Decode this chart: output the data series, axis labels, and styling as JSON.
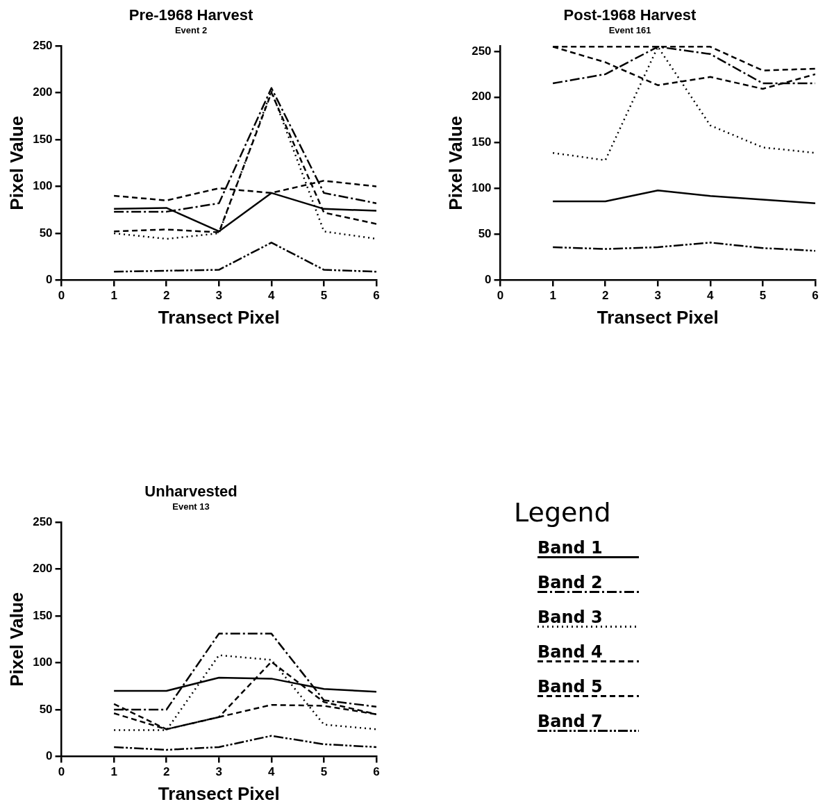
{
  "chart_data": [
    {
      "type": "line",
      "title": "Pre-1968 Harvest",
      "subtitle": "Event 2",
      "xlabel": "Transect Pixel",
      "ylabel": "Pixel Value",
      "x": [
        1,
        2,
        3,
        4,
        5,
        6
      ],
      "xlim": [
        0,
        6
      ],
      "xticks": [
        0,
        1,
        2,
        3,
        4,
        5,
        6
      ],
      "ylim": [
        0,
        250
      ],
      "yticks": [
        0,
        50,
        100,
        150,
        200,
        250
      ],
      "grid": false,
      "legend": false,
      "marker": "none",
      "series": [
        {
          "color": "#000000",
          "line_style": "solid",
          "values": [
            76,
            77,
            52,
            93,
            76,
            74
          ]
        },
        {
          "color": "#000000",
          "line_style": "dashdot",
          "values": [
            73,
            73,
            82,
            205,
            93,
            82
          ]
        },
        {
          "color": "#000000",
          "line_style": "dotted",
          "values": [
            50,
            44,
            50,
            202,
            52,
            44
          ]
        },
        {
          "color": "#000000",
          "line_style": "dashed",
          "values": [
            90,
            85,
            98,
            93,
            106,
            100
          ]
        },
        {
          "color": "#000000",
          "line_style": "dashed",
          "values": [
            52,
            54,
            51,
            200,
            72,
            60
          ]
        },
        {
          "color": "#000000",
          "line_style": "dashdotdot",
          "values": [
            9,
            10,
            11,
            40,
            11,
            9
          ]
        }
      ]
    },
    {
      "type": "line",
      "title": "Post-1968 Harvest",
      "subtitle": "Event 161",
      "xlabel": "Transect Pixel",
      "ylabel": "Pixel Value",
      "x": [
        1,
        2,
        3,
        4,
        5,
        6
      ],
      "xlim": [
        0,
        6
      ],
      "xticks": [
        0,
        1,
        2,
        3,
        4,
        5,
        6
      ],
      "ylim": [
        0,
        256
      ],
      "yticks": [
        0,
        50,
        100,
        150,
        200,
        250
      ],
      "grid": false,
      "legend": false,
      "marker": "none",
      "series": [
        {
          "color": "#000000",
          "line_style": "solid",
          "values": [
            86,
            86,
            98,
            92,
            88,
            84
          ]
        },
        {
          "color": "#000000",
          "line_style": "dashdot",
          "values": [
            215,
            225,
            255,
            247,
            215,
            215
          ]
        },
        {
          "color": "#000000",
          "line_style": "dotted",
          "values": [
            139,
            131,
            255,
            169,
            145,
            139
          ]
        },
        {
          "color": "#000000",
          "line_style": "dashed",
          "values": [
            255,
            238,
            213,
            222,
            209,
            225
          ]
        },
        {
          "color": "#000000",
          "line_style": "dashed",
          "values": [
            255,
            255,
            255,
            255,
            229,
            231
          ]
        },
        {
          "color": "#000000",
          "line_style": "dashdotdot",
          "values": [
            36,
            34,
            36,
            41,
            35,
            32
          ]
        }
      ]
    },
    {
      "type": "line",
      "title": "Unharvested",
      "subtitle": "Event 13",
      "xlabel": "Transect Pixel",
      "ylabel": "Pixel Value",
      "x": [
        1,
        2,
        3,
        4,
        5,
        6
      ],
      "xlim": [
        0,
        6
      ],
      "xticks": [
        0,
        1,
        2,
        3,
        4,
        5,
        6
      ],
      "ylim": [
        0,
        250
      ],
      "yticks": [
        0,
        50,
        100,
        150,
        200,
        250
      ],
      "grid": false,
      "legend": "right",
      "legend_title": "Legend",
      "marker": "none",
      "series": [
        {
          "name": "Band 1",
          "color": "#000000",
          "line_style": "solid",
          "values": [
            70,
            70,
            84,
            83,
            72,
            69
          ]
        },
        {
          "name": "Band 2",
          "color": "#000000",
          "line_style": "dashdot",
          "values": [
            50,
            50,
            131,
            131,
            60,
            53
          ]
        },
        {
          "name": "Band 3",
          "color": "#000000",
          "line_style": "dotted",
          "values": [
            28,
            28,
            108,
            103,
            34,
            29
          ]
        },
        {
          "name": "Band 4",
          "color": "#000000",
          "line_style": "dashed",
          "values": [
            46,
            29,
            42,
            55,
            54,
            45
          ]
        },
        {
          "name": "Band 5",
          "color": "#000000",
          "line_style": "dashed",
          "values": [
            56,
            29,
            42,
            101,
            58,
            45
          ]
        },
        {
          "name": "Band 7",
          "color": "#000000",
          "line_style": "dashdotdot",
          "values": [
            10,
            7,
            10,
            22,
            13,
            10
          ]
        }
      ]
    }
  ]
}
